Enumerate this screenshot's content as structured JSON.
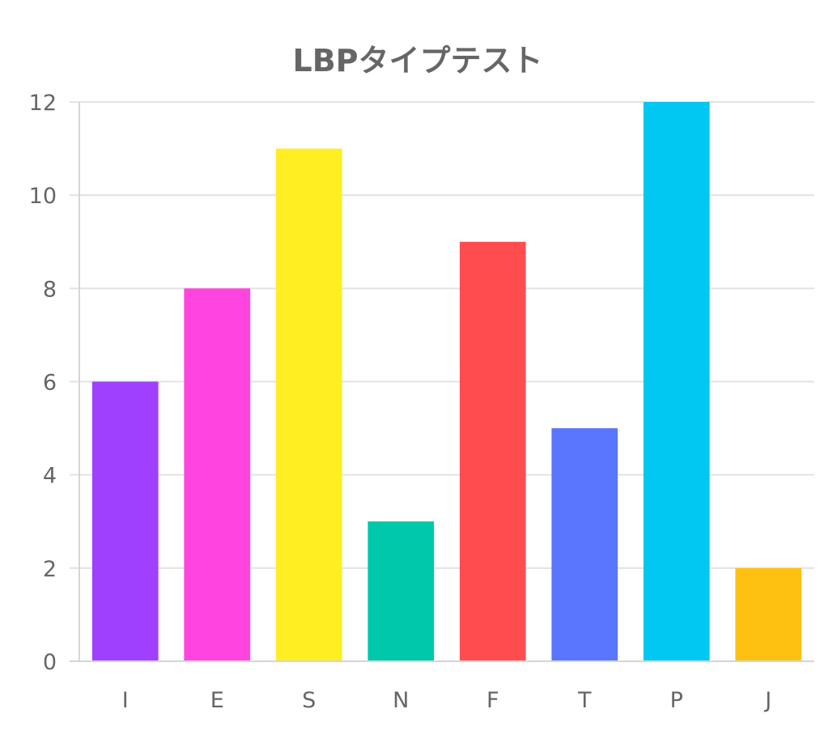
{
  "chart_data": {
    "type": "bar",
    "title": "LBPタイプテスト",
    "categories": [
      "I",
      "E",
      "S",
      "N",
      "F",
      "T",
      "P",
      "J"
    ],
    "values": [
      6,
      8,
      11,
      3,
      9,
      5,
      12,
      2
    ],
    "colors": [
      "#9f3fff",
      "#ff44e0",
      "#ffee22",
      "#00c8aa",
      "#ff4d4f",
      "#5a76ff",
      "#00c8f2",
      "#ffc111"
    ],
    "ylim": [
      0,
      12
    ],
    "yticks": [
      "0",
      "2",
      "4",
      "6",
      "8",
      "10",
      "12"
    ],
    "grid": true,
    "legend": "none"
  }
}
